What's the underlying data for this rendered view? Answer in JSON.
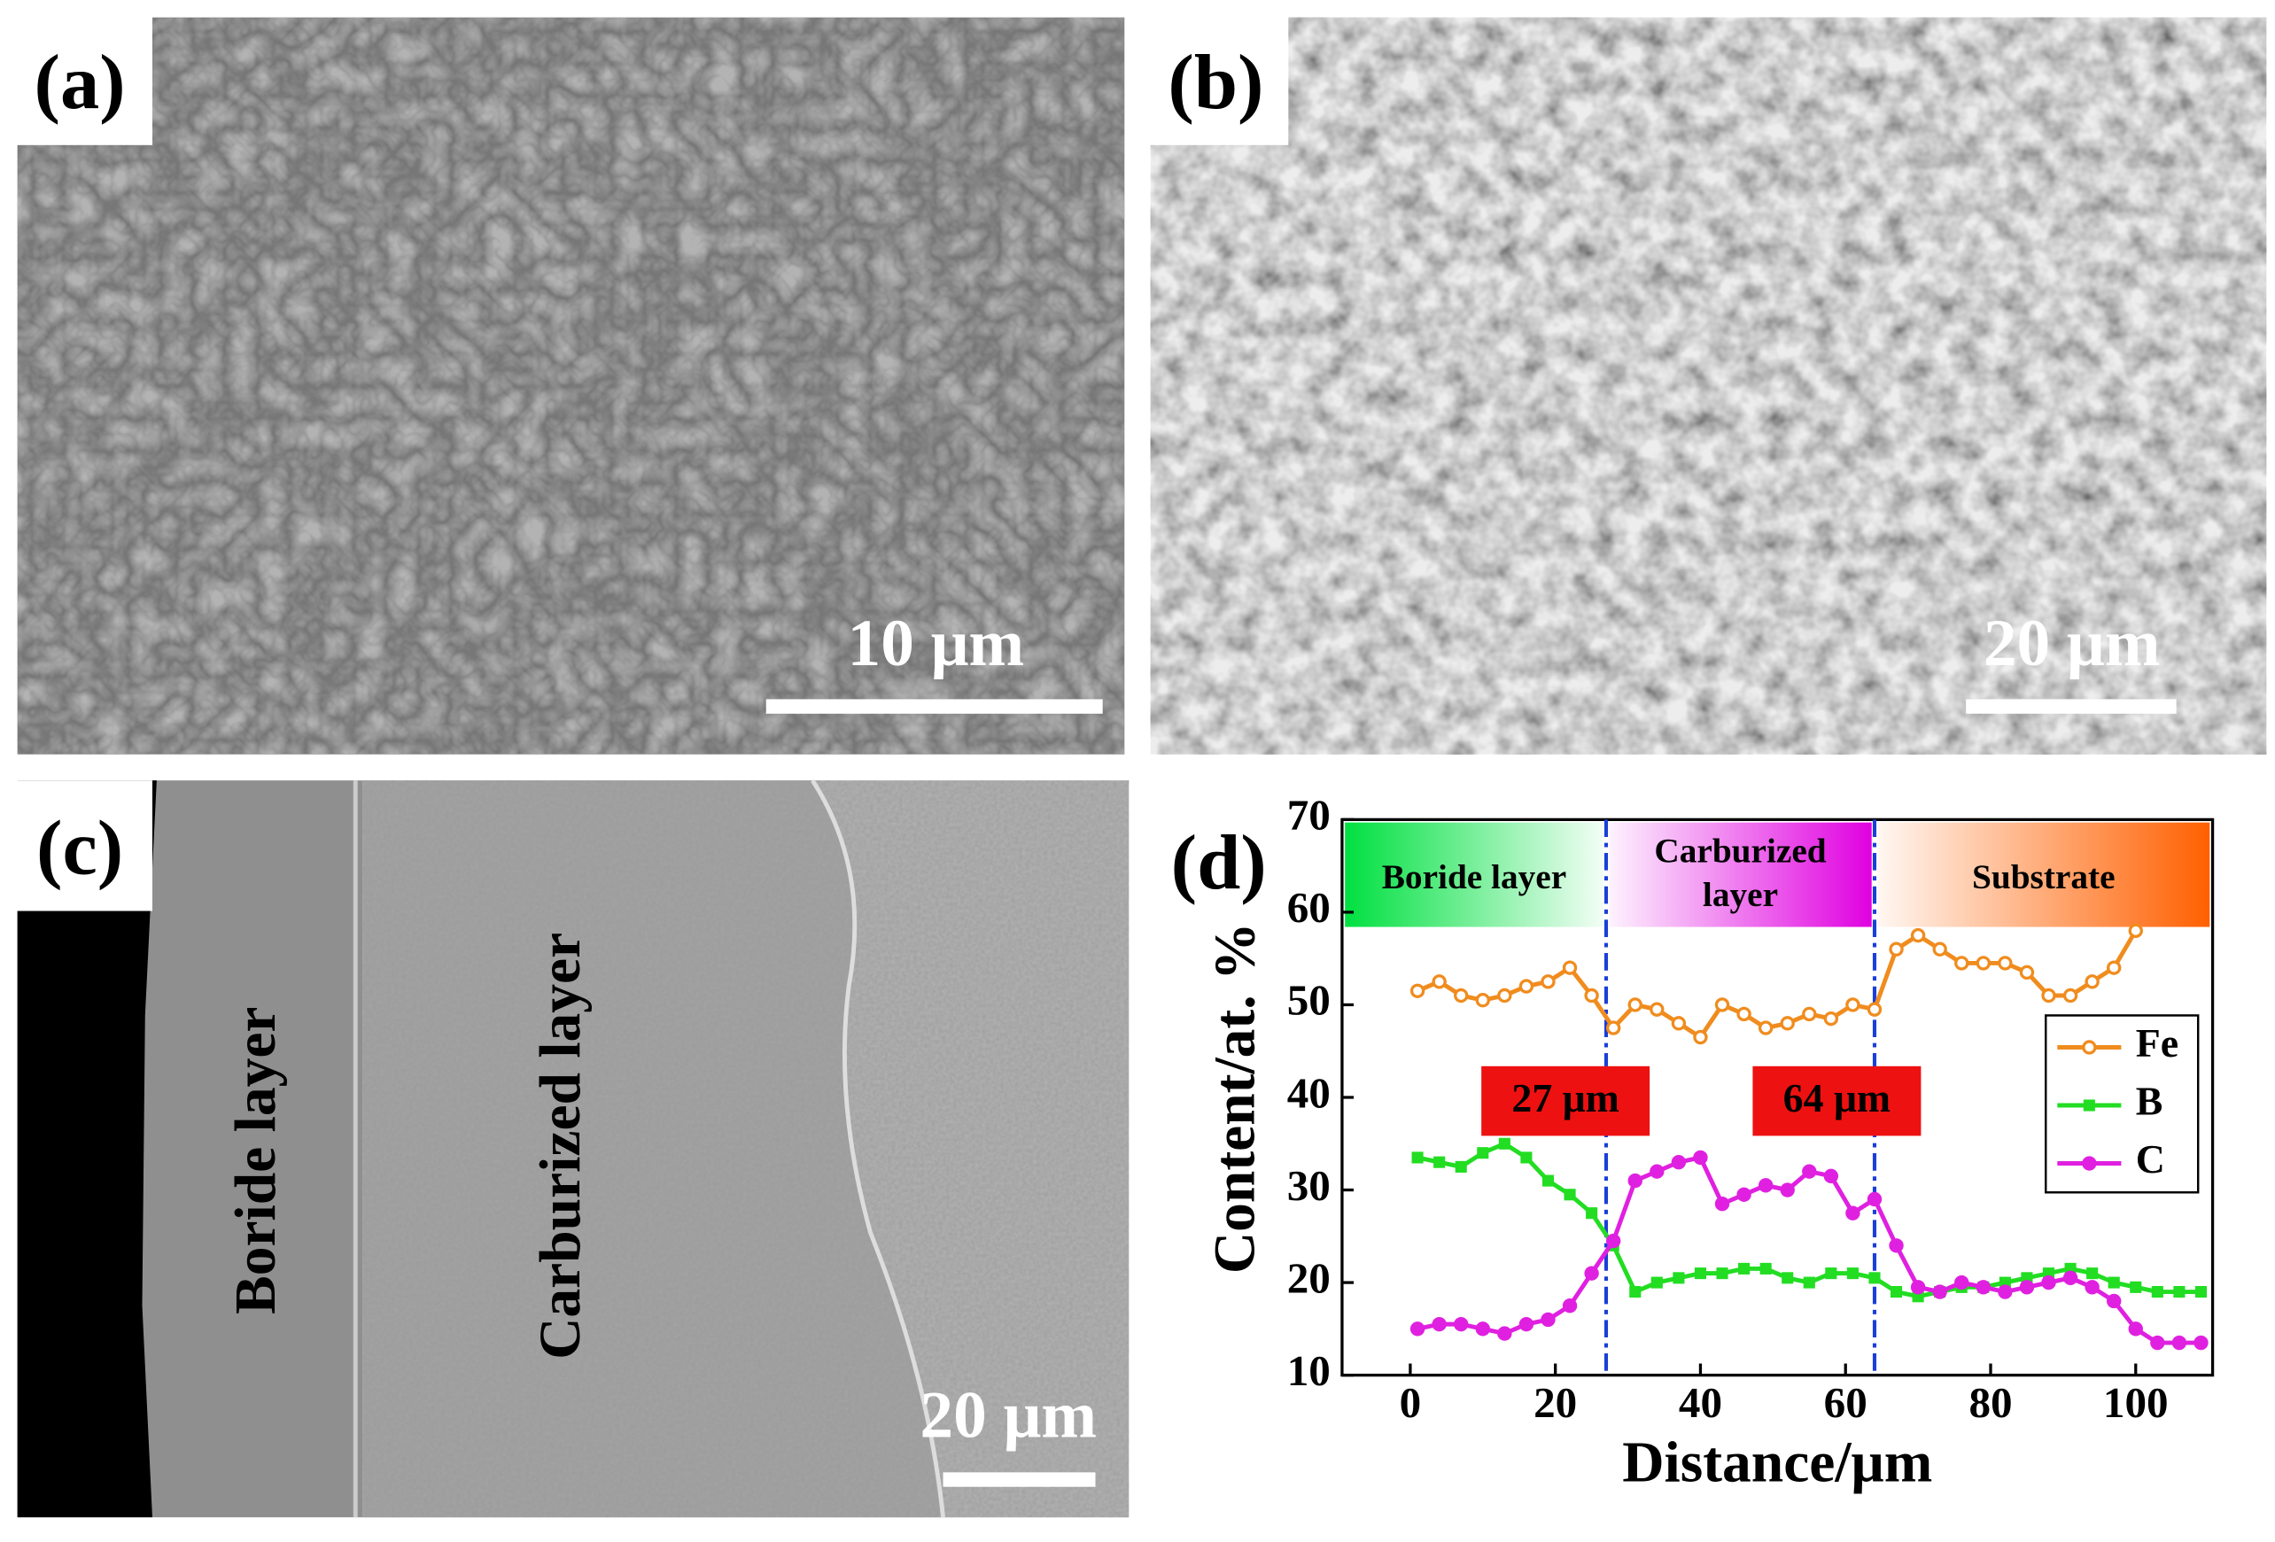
{
  "panels": [
    {
      "label": "(a)",
      "scale_bar": "10 μm"
    },
    {
      "label": "(b)",
      "scale_bar": "20 μm"
    },
    {
      "label": "(c)",
      "scale_bar": "20 μm",
      "layers": [
        "Boride layer",
        "Carburized layer"
      ]
    }
  ],
  "chart_data": {
    "type": "line",
    "label": "(d)",
    "xlabel": "Distance/μm",
    "ylabel": "Content/at. %",
    "xlim": [
      -9.4,
      110.6
    ],
    "ylim": [
      10,
      70
    ],
    "xticks": [
      0,
      20,
      40,
      60,
      80,
      100
    ],
    "yticks": [
      10,
      20,
      30,
      40,
      50,
      60,
      70
    ],
    "regions": [
      {
        "label": "Boride layer",
        "color": "#00e040"
      },
      {
        "label": "Carburized layer",
        "color": "#e000e0"
      },
      {
        "label": "Substrate",
        "color": "#ff6000"
      }
    ],
    "boundaries": [
      {
        "value": 27,
        "label": "27 μm"
      },
      {
        "value": 64,
        "label": "64 μm"
      }
    ],
    "legend": "right",
    "x": [
      1,
      4,
      7,
      10,
      13,
      16,
      19,
      22,
      25,
      28,
      31,
      34,
      37,
      40,
      43,
      46,
      49,
      52,
      55,
      58,
      61,
      64,
      67,
      70,
      73,
      76,
      79,
      82,
      85,
      88,
      91,
      94,
      97,
      100,
      103,
      106,
      109
    ],
    "series": [
      {
        "name": "Fe",
        "color": "#f08c1e",
        "marker": "circle",
        "values": [
          51.5,
          52.5,
          51,
          50.5,
          51,
          52,
          52.5,
          54,
          51,
          47.5,
          50,
          49.5,
          48,
          46.5,
          50,
          49,
          47.5,
          48,
          49,
          48.5,
          50,
          49.5,
          56,
          57.5,
          56,
          54.5,
          54.5,
          54.5,
          53.5,
          51,
          51,
          52.5,
          54,
          58,
          null,
          null,
          null
        ]
      },
      {
        "name": "B",
        "color": "#22dd22",
        "marker": "square",
        "values": [
          33.5,
          33,
          32.5,
          34,
          35,
          33.5,
          31,
          29.5,
          27.5,
          24,
          19,
          20,
          20.5,
          21,
          21,
          21.5,
          21.5,
          20.5,
          20,
          21,
          21,
          20.5,
          19,
          18.5,
          19,
          19.5,
          19.5,
          20,
          20.5,
          21,
          21.5,
          21,
          20,
          19.5,
          19,
          19,
          19
        ]
      },
      {
        "name": "C",
        "color": "#e020e0",
        "marker": "circle",
        "values": [
          15,
          15.5,
          15.5,
          15,
          14.5,
          15.5,
          16,
          17.5,
          21,
          24.5,
          31,
          32,
          33,
          33.5,
          28.5,
          29.5,
          30.5,
          30,
          32,
          31.5,
          27.5,
          29,
          24,
          19.5,
          19,
          20,
          19.5,
          19,
          19.5,
          20,
          20.5,
          19.5,
          18,
          15,
          13.5,
          13.5,
          13.5
        ]
      }
    ]
  }
}
